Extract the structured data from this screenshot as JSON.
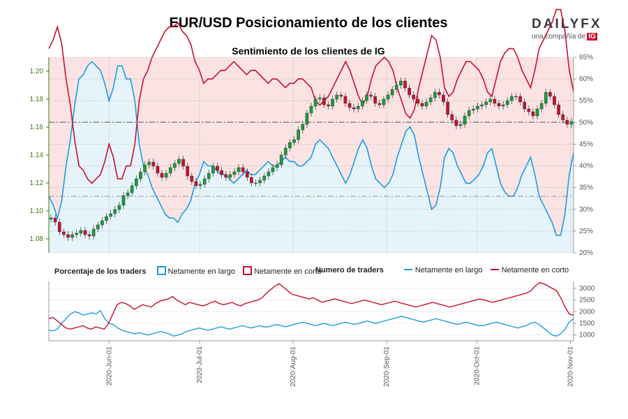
{
  "header": {
    "title": "EUR/USD Posicionamiento de los clientes",
    "subtitle": "Sentimiento de los clientes de IG"
  },
  "logo": {
    "name": "DAILYFX",
    "tagline": "una compañía de",
    "badge": "IG"
  },
  "legend": {
    "pct_heading": "Porcentaje de los traders",
    "pct_long": "Netamente en largo",
    "pct_short": "Netamente en corto",
    "count_heading": "Numero de traders",
    "count_long": "Netamente en largo",
    "count_short": "Netamente en corto"
  },
  "colors": {
    "long": "#1e9be0",
    "short": "#c8102e",
    "long_fill": "#e6f3fb",
    "short_fill": "#fbe3e4",
    "price_axis": "#3a7a12",
    "bull": "#1a9a3a",
    "bear": "#c8102e",
    "current_line": "#555555"
  },
  "chart_data": [
    {
      "type": "candlestick+area",
      "title": "Sentimiento de los clientes de IG",
      "x_dates": [
        "2020-05-12",
        "2020-06-01",
        "2020-07-01",
        "2020-08-01",
        "2020-09-01",
        "2020-10-01",
        "2020-11-01",
        "2020-11-02"
      ],
      "x_tick_labels": [
        "2020-Jun-01",
        "2020-Jul-01",
        "2020-Aug-01",
        "2020-Sep-01",
        "2020-Oct-01",
        "2020-Nov-01"
      ],
      "price_axis": {
        "side": "left",
        "ylim": [
          1.07,
          1.21
        ],
        "ticks": [
          "1.08",
          "1.10",
          "1.12",
          "1.14",
          "1.16",
          "1.18",
          "1.20"
        ]
      },
      "percent_axis": {
        "side": "right",
        "ylim": [
          20,
          65
        ],
        "ticks": [
          "20%",
          "25%",
          "30%",
          "35%",
          "40%",
          "45%",
          "50%",
          "55%",
          "60%",
          "65%"
        ]
      },
      "current_price": 1.1635,
      "reference_percent": 33,
      "price_close": [
        1.095,
        1.092,
        1.085,
        1.083,
        1.081,
        1.083,
        1.084,
        1.086,
        1.083,
        1.082,
        1.087,
        1.09,
        1.093,
        1.096,
        1.098,
        1.101,
        1.104,
        1.111,
        1.113,
        1.118,
        1.123,
        1.128,
        1.133,
        1.135,
        1.132,
        1.127,
        1.124,
        1.127,
        1.131,
        1.134,
        1.137,
        1.132,
        1.125,
        1.121,
        1.118,
        1.119,
        1.123,
        1.127,
        1.132,
        1.129,
        1.126,
        1.124,
        1.126,
        1.128,
        1.131,
        1.128,
        1.124,
        1.12,
        1.12,
        1.122,
        1.125,
        1.128,
        1.131,
        1.133,
        1.14,
        1.145,
        1.149,
        1.151,
        1.158,
        1.162,
        1.17,
        1.175,
        1.18,
        1.181,
        1.176,
        1.175,
        1.18,
        1.183,
        1.182,
        1.177,
        1.174,
        1.173,
        1.175,
        1.179,
        1.183,
        1.182,
        1.177,
        1.176,
        1.18,
        1.183,
        1.187,
        1.19,
        1.193,
        1.188,
        1.183,
        1.18,
        1.177,
        1.175,
        1.178,
        1.181,
        1.185,
        1.183,
        1.178,
        1.169,
        1.165,
        1.161,
        1.162,
        1.168,
        1.172,
        1.173,
        1.175,
        1.176,
        1.178,
        1.18,
        1.177,
        1.175,
        1.176,
        1.179,
        1.182,
        1.182,
        1.178,
        1.173,
        1.171,
        1.168,
        1.173,
        1.177,
        1.185,
        1.182,
        1.176,
        1.169,
        1.165,
        1.162,
        1.164
      ],
      "pct_long": [
        33,
        31,
        28,
        32,
        40,
        46,
        54,
        60,
        61,
        63,
        64,
        63,
        62,
        59,
        55,
        58,
        63,
        63,
        60,
        60,
        55,
        45,
        40,
        38,
        35,
        33,
        31,
        29,
        28,
        28,
        27,
        29,
        30,
        32,
        36,
        38,
        41,
        40,
        40,
        39,
        38,
        38,
        37,
        36,
        37,
        38,
        39,
        38,
        38,
        39,
        40,
        41,
        40,
        40,
        41,
        42,
        41,
        41,
        40,
        40,
        41,
        42,
        45,
        46,
        45,
        44,
        42,
        40,
        38,
        36,
        38,
        41,
        44,
        46,
        44,
        40,
        37,
        36,
        35,
        36,
        38,
        42,
        45,
        48,
        49,
        47,
        42,
        38,
        34,
        30,
        31,
        35,
        42,
        44,
        43,
        40,
        38,
        36,
        36,
        37,
        38,
        40,
        43,
        44,
        40,
        36,
        34,
        33,
        33,
        35,
        38,
        40,
        42,
        38,
        33,
        31,
        29,
        27,
        24,
        24,
        29,
        38,
        43
      ],
      "pct_short": [
        67,
        69,
        72,
        68,
        60,
        54,
        46,
        40,
        39,
        37,
        36,
        37,
        38,
        41,
        45,
        42,
        37,
        37,
        40,
        40,
        45,
        55,
        60,
        62,
        65,
        67,
        69,
        71,
        72,
        72,
        73,
        71,
        70,
        68,
        64,
        62,
        59,
        60,
        60,
        61,
        62,
        62,
        63,
        64,
        63,
        62,
        61,
        62,
        62,
        61,
        60,
        59,
        60,
        60,
        59,
        58,
        59,
        59,
        60,
        60,
        59,
        58,
        55,
        54,
        55,
        56,
        58,
        60,
        62,
        64,
        62,
        59,
        56,
        54,
        56,
        60,
        63,
        64,
        65,
        64,
        62,
        58,
        55,
        52,
        51,
        53,
        58,
        62,
        66,
        70,
        69,
        65,
        58,
        56,
        57,
        60,
        62,
        64,
        64,
        63,
        62,
        60,
        57,
        56,
        60,
        64,
        66,
        67,
        67,
        65,
        62,
        60,
        58,
        62,
        67,
        69,
        71,
        73,
        76,
        76,
        71,
        62,
        57
      ],
      "series_names": [
        "Netamente en largo",
        "Netamente en corto"
      ]
    },
    {
      "type": "line",
      "title": "Numero de traders",
      "y_axis": {
        "side": "right",
        "ylim": [
          750,
          3300
        ],
        "ticks": [
          "1000",
          "1500",
          "2000",
          "2500",
          "3000"
        ]
      },
      "series": [
        {
          "name": "Netamente en largo",
          "values": [
            1200,
            1180,
            1250,
            1500,
            1700,
            1900,
            2000,
            1950,
            1850,
            1900,
            1950,
            1900,
            2050,
            1700,
            1500,
            1450,
            1300,
            1200,
            1150,
            1100,
            1050,
            1100,
            1050,
            1000,
            1050,
            1100,
            1150,
            1100,
            1050,
            950,
            1000,
            1050,
            1150,
            1200,
            1250,
            1300,
            1250,
            1200,
            1250,
            1300,
            1350,
            1300,
            1250,
            1300,
            1350,
            1400,
            1350,
            1300,
            1350,
            1400,
            1350,
            1350,
            1400,
            1450,
            1400,
            1350,
            1400,
            1450,
            1500,
            1550,
            1500,
            1450,
            1400,
            1450,
            1500,
            1450,
            1400,
            1450,
            1500,
            1550,
            1500,
            1450,
            1500,
            1550,
            1600,
            1550,
            1500,
            1550,
            1600,
            1650,
            1700,
            1750,
            1800,
            1750,
            1700,
            1650,
            1600,
            1550,
            1600,
            1650,
            1700,
            1650,
            1600,
            1550,
            1500,
            1450,
            1500,
            1550,
            1500,
            1450,
            1400,
            1400,
            1450,
            1500,
            1550,
            1500,
            1450,
            1400,
            1350,
            1300,
            1350,
            1400,
            1500,
            1550,
            1450,
            1300,
            1150,
            1000,
            950,
            1050,
            1250,
            1550,
            1700
          ]
        },
        {
          "name": "Netamente en corto",
          "values": [
            1700,
            1750,
            1600,
            1450,
            1300,
            1250,
            1300,
            1350,
            1400,
            1300,
            1250,
            1350,
            1300,
            1250,
            1500,
            1900,
            2300,
            2400,
            2350,
            2250,
            2100,
            2200,
            2300,
            2250,
            2200,
            2350,
            2450,
            2500,
            2550,
            2650,
            2500,
            2400,
            2300,
            2400,
            2350,
            2300,
            2250,
            2300,
            2400,
            2450,
            2350,
            2300,
            2350,
            2400,
            2300,
            2250,
            2350,
            2400,
            2450,
            2500,
            2600,
            2800,
            2950,
            3100,
            3200,
            3050,
            2900,
            2750,
            2700,
            2650,
            2600,
            2550,
            2600,
            2500,
            2400,
            2450,
            2500,
            2550,
            2500,
            2450,
            2400,
            2350,
            2400,
            2450,
            2500,
            2450,
            2400,
            2350,
            2300,
            2350,
            2400,
            2450,
            2400,
            2350,
            2300,
            2250,
            2200,
            2250,
            2300,
            2350,
            2400,
            2350,
            2300,
            2250,
            2200,
            2250,
            2300,
            2350,
            2400,
            2450,
            2500,
            2550,
            2500,
            2450,
            2400,
            2450,
            2500,
            2550,
            2600,
            2650,
            2700,
            2750,
            2800,
            2900,
            3100,
            3250,
            3200,
            3100,
            3000,
            2900,
            2600,
            2200,
            1900,
            1850
          ]
        }
      ]
    }
  ]
}
